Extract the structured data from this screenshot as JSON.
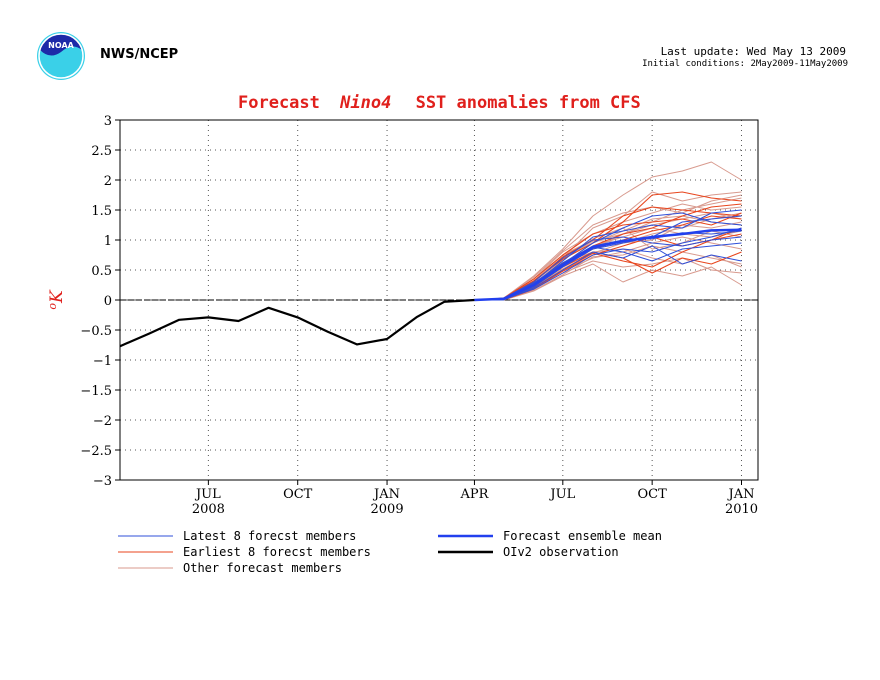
{
  "header": {
    "agency": "NWS/NCEP",
    "last_update": "Last update: Wed May 13 2009",
    "initial_conditions": "Initial conditions: 2May2009-11May2009"
  },
  "logo": {
    "name": "noaa-logo",
    "text": "NOAA"
  },
  "chart_data": {
    "type": "line",
    "title": "Forecast",
    "title_italic": "Nino4",
    "title_rest": "SST anomalies from CFS",
    "ylabel": "oK",
    "ylim": [
      -3,
      3
    ],
    "yticks": [
      -3,
      -2.5,
      -2,
      -1.5,
      -1,
      -0.5,
      0,
      0.5,
      1,
      1.5,
      2,
      2.5,
      3
    ],
    "ytick_labels": [
      "−3",
      "−2.5",
      "−2",
      "−1.5",
      "−1",
      "−0.5",
      "0",
      "0.5",
      "1",
      "1.5",
      "2",
      "2.5",
      "3"
    ],
    "xlim": [
      "2008-04-15",
      "2010-02-01"
    ],
    "xticks": [
      {
        "date": "2008-07-15",
        "label": "JUL",
        "year": "2008"
      },
      {
        "date": "2008-10-15",
        "label": "OCT",
        "year": ""
      },
      {
        "date": "2009-01-15",
        "label": "JAN",
        "year": "2009"
      },
      {
        "date": "2009-04-15",
        "label": "APR",
        "year": ""
      },
      {
        "date": "2009-07-15",
        "label": "JUL",
        "year": ""
      },
      {
        "date": "2009-10-15",
        "label": "OCT",
        "year": ""
      },
      {
        "date": "2010-01-15",
        "label": "JAN",
        "year": "2010"
      }
    ],
    "grid": true,
    "colors": {
      "latest": "#2f4fd8",
      "earliest": "#e8461e",
      "other": "#d89a8e",
      "mean": "#2240ee",
      "obs": "#000000",
      "title": "#e0201c"
    },
    "observation": {
      "name": "OIv2 observation",
      "x": [
        "2008-04-15",
        "2008-05-15",
        "2008-06-15",
        "2008-07-15",
        "2008-08-15",
        "2008-09-15",
        "2008-10-15",
        "2008-11-15",
        "2008-12-15",
        "2009-01-15",
        "2009-02-15",
        "2009-03-15",
        "2009-04-15"
      ],
      "y": [
        -0.77,
        -0.56,
        -0.33,
        -0.29,
        -0.35,
        -0.13,
        -0.29,
        -0.53,
        -0.74,
        -0.65,
        -0.28,
        -0.03,
        0.0
      ]
    },
    "ensemble_mean": {
      "name": "Forecast ensemble mean",
      "x": [
        "2009-04-15",
        "2009-05-15",
        "2009-06-15",
        "2009-07-15",
        "2009-08-15",
        "2009-09-15",
        "2009-10-15",
        "2009-11-15",
        "2009-12-15",
        "2010-01-15"
      ],
      "y": [
        0.0,
        0.02,
        0.25,
        0.58,
        0.88,
        0.98,
        1.05,
        1.1,
        1.16,
        1.17
      ]
    },
    "members_x": [
      "2009-04-15",
      "2009-05-15",
      "2009-06-15",
      "2009-07-15",
      "2009-08-15",
      "2009-09-15",
      "2009-10-15",
      "2009-11-15",
      "2009-12-15",
      "2010-01-15"
    ],
    "latest_members": [
      [
        0,
        0.02,
        0.28,
        0.62,
        0.9,
        1.0,
        1.02,
        1.12,
        1.1,
        1.15
      ],
      [
        0,
        0.01,
        0.22,
        0.55,
        0.85,
        0.95,
        1.05,
        1.3,
        1.35,
        1.4
      ],
      [
        0,
        0.03,
        0.3,
        0.7,
        1.0,
        1.05,
        0.95,
        0.9,
        1.0,
        1.05
      ],
      [
        0,
        0.0,
        0.2,
        0.5,
        0.8,
        0.7,
        0.9,
        0.6,
        0.75,
        0.65
      ],
      [
        0,
        0.02,
        0.25,
        0.6,
        0.95,
        1.2,
        1.4,
        1.45,
        1.3,
        1.25
      ],
      [
        0,
        0.01,
        0.18,
        0.45,
        0.75,
        0.85,
        0.8,
        0.95,
        1.05,
        1.2
      ],
      [
        0,
        0.02,
        0.26,
        0.65,
        1.05,
        1.15,
        1.25,
        1.2,
        1.45,
        1.5
      ],
      [
        0,
        0.01,
        0.24,
        0.58,
        0.88,
        0.8,
        0.65,
        0.85,
        0.9,
        0.95
      ]
    ],
    "earliest_members": [
      [
        0,
        0.03,
        0.32,
        0.68,
        0.95,
        1.3,
        1.75,
        1.8,
        1.7,
        1.65
      ],
      [
        0,
        0.02,
        0.28,
        0.6,
        0.9,
        1.1,
        1.2,
        1.4,
        1.55,
        1.6
      ],
      [
        0,
        0.01,
        0.22,
        0.55,
        0.8,
        0.7,
        0.45,
        0.7,
        0.6,
        0.8
      ],
      [
        0,
        0.02,
        0.3,
        0.72,
        1.0,
        1.4,
        1.55,
        1.5,
        1.45,
        1.4
      ],
      [
        0,
        0.0,
        0.18,
        0.48,
        0.75,
        0.9,
        1.05,
        0.9,
        1.0,
        1.1
      ],
      [
        0,
        0.03,
        0.35,
        0.75,
        1.1,
        1.25,
        1.3,
        1.35,
        1.25,
        1.45
      ],
      [
        0,
        0.01,
        0.2,
        0.5,
        0.78,
        0.65,
        0.55,
        0.8,
        1.0,
        1.2
      ],
      [
        0,
        0.02,
        0.26,
        0.62,
        0.85,
        1.0,
        1.15,
        1.25,
        1.4,
        1.35
      ]
    ],
    "other_members": [
      [
        0,
        0.03,
        0.4,
        0.85,
        1.4,
        1.75,
        2.05,
        2.15,
        2.3,
        2.0
      ],
      [
        0,
        0.02,
        0.3,
        0.7,
        1.2,
        1.4,
        1.8,
        1.65,
        1.75,
        1.8
      ],
      [
        0,
        0.0,
        0.15,
        0.4,
        0.6,
        0.3,
        0.5,
        0.4,
        0.55,
        0.25
      ],
      [
        0,
        0.01,
        0.22,
        0.55,
        0.85,
        1.1,
        1.3,
        1.5,
        1.6,
        1.7
      ],
      [
        0,
        0.02,
        0.28,
        0.62,
        0.8,
        0.85,
        0.7,
        0.6,
        0.75,
        0.55
      ],
      [
        0,
        0.03,
        0.35,
        0.8,
        1.1,
        1.3,
        1.45,
        1.6,
        1.5,
        1.55
      ],
      [
        0,
        0.01,
        0.2,
        0.48,
        0.7,
        0.8,
        0.95,
        1.05,
        0.95,
        0.85
      ],
      [
        0,
        0.02,
        0.25,
        0.6,
        0.95,
        1.15,
        1.35,
        1.4,
        1.3,
        1.25
      ],
      [
        0,
        0.02,
        0.32,
        0.75,
        1.0,
        0.95,
        1.1,
        1.2,
        1.35,
        1.45
      ],
      [
        0,
        0.01,
        0.18,
        0.45,
        0.65,
        0.55,
        0.6,
        0.7,
        0.5,
        0.45
      ],
      [
        0,
        0.03,
        0.38,
        0.82,
        1.25,
        1.45,
        1.55,
        1.45,
        1.65,
        1.75
      ],
      [
        0,
        0.02,
        0.24,
        0.58,
        0.9,
        1.05,
        1.2,
        1.1,
        1.05,
        1.15
      ],
      [
        0,
        0.01,
        0.21,
        0.52,
        0.78,
        0.95,
        1.0,
        1.25,
        1.2,
        1.3
      ],
      [
        0,
        0.02,
        0.27,
        0.66,
        1.02,
        1.2,
        0.85,
        0.95,
        1.15,
        1.05
      ],
      [
        0,
        0.0,
        0.16,
        0.42,
        0.72,
        0.75,
        0.9,
        0.8,
        0.7,
        0.6
      ],
      [
        0,
        0.02,
        0.3,
        0.68,
        0.98,
        1.1,
        1.25,
        1.35,
        1.45,
        1.35
      ]
    ],
    "legend": [
      {
        "label": "Latest 8 forecst members",
        "color": "#2f4fd8",
        "width": 1
      },
      {
        "label": "Earliest 8 forecst members",
        "color": "#e8461e",
        "width": 1
      },
      {
        "label": "Other forecast members",
        "color": "#d89a8e",
        "width": 1
      },
      {
        "label": "Forecast ensemble mean",
        "color": "#2240ee",
        "width": 2.5
      },
      {
        "label": "OIv2 observation",
        "color": "#000000",
        "width": 2.5
      }
    ]
  }
}
